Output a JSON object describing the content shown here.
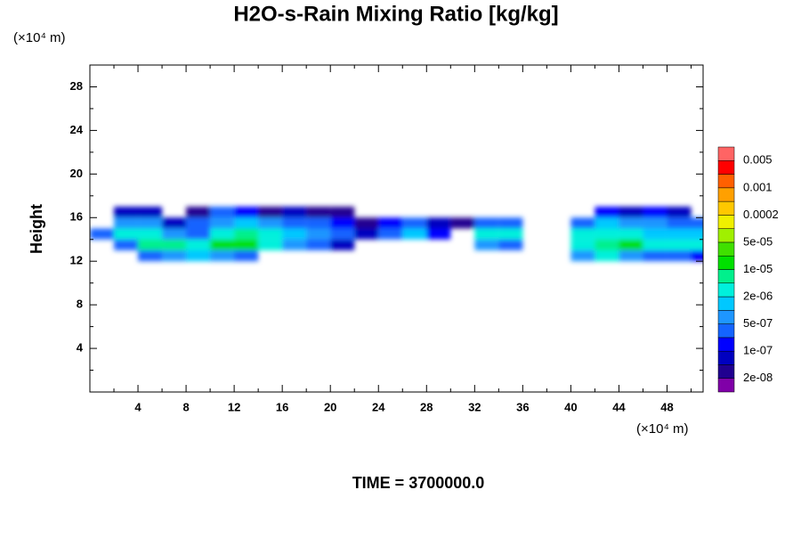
{
  "chart_data": {
    "type": "contour",
    "title": "H2O-s-Rain Mixing Ratio [kg/kg]",
    "x_unit_label": "(×10⁴ m)",
    "y_unit_label": "(×10⁴ m)",
    "ylabel": "Height",
    "time_label": "TIME = 3700000.0",
    "xlim": [
      0,
      51
    ],
    "ylim": [
      0,
      30
    ],
    "xticks": [
      4,
      8,
      12,
      16,
      20,
      24,
      28,
      32,
      36,
      40,
      44,
      48
    ],
    "yticks": [
      4,
      8,
      12,
      16,
      20,
      24,
      28
    ],
    "xminorticks": [
      2,
      6,
      10,
      14,
      18,
      22,
      26,
      30,
      34,
      38,
      42,
      46,
      50
    ],
    "yminorticks": [
      2,
      6,
      10,
      14,
      18,
      22,
      26
    ],
    "x": [
      1,
      3,
      5,
      7,
      9,
      11,
      13,
      15,
      17,
      19,
      21,
      23,
      25,
      27,
      29,
      31,
      33,
      35,
      37,
      39,
      41,
      43,
      45,
      47,
      49,
      51
    ],
    "y": [
      12.5,
      13.5,
      14.5,
      15.5,
      16.5
    ],
    "z": [
      [
        null,
        null,
        2e-07,
        8e-07,
        1e-06,
        6e-07,
        3e-07,
        null,
        null,
        null,
        null,
        null,
        null,
        null,
        null,
        null,
        null,
        null,
        null,
        null,
        8e-07,
        2e-06,
        5e-07,
        3e-07,
        2e-07,
        1e-07
      ],
      [
        null,
        3e-07,
        8e-06,
        6e-06,
        4e-06,
        1.5e-05,
        1.2e-05,
        3e-06,
        8e-07,
        4e-07,
        5e-08,
        null,
        null,
        null,
        null,
        null,
        5e-07,
        3e-07,
        null,
        null,
        3e-06,
        6e-06,
        1e-05,
        2e-06,
        2e-06,
        2e-06
      ],
      [
        3e-07,
        2e-06,
        3e-06,
        5e-07,
        4e-07,
        4e-06,
        5e-06,
        2e-06,
        1e-06,
        6e-07,
        2e-07,
        5e-08,
        2e-07,
        1e-06,
        1e-07,
        null,
        3e-06,
        2e-06,
        null,
        null,
        2e-06,
        3e-06,
        3e-06,
        1e-06,
        1.5e-06,
        1e-06
      ],
      [
        null,
        5e-07,
        6e-07,
        8e-08,
        3e-07,
        8e-07,
        1e-06,
        6e-07,
        4e-07,
        3e-07,
        1e-07,
        4e-08,
        1e-07,
        3e-07,
        5e-08,
        2e-08,
        3e-07,
        2e-07,
        null,
        null,
        4e-07,
        1e-06,
        8e-07,
        5e-07,
        4e-07,
        3e-07
      ],
      [
        null,
        8e-08,
        5e-08,
        null,
        3e-08,
        2e-07,
        1e-07,
        3e-08,
        5e-08,
        3e-08,
        2e-08,
        null,
        null,
        null,
        null,
        null,
        null,
        null,
        null,
        null,
        null,
        1e-07,
        5e-08,
        1e-07,
        5e-08,
        null
      ]
    ],
    "colorbar": {
      "levels": [
        1e-08,
        2e-08,
        5e-08,
        1e-07,
        2e-07,
        5e-07,
        1e-06,
        2e-06,
        5e-06,
        1e-05,
        2e-05,
        5e-05,
        0.0001,
        0.0002,
        0.0005,
        0.001,
        0.002,
        0.005,
        0.01
      ],
      "colors": [
        "#8000a8",
        "#200090",
        "#0000c0",
        "#0000ff",
        "#1464ff",
        "#1e96ff",
        "#00c8ff",
        "#00f0dc",
        "#00f08c",
        "#00e000",
        "#40e000",
        "#a0f000",
        "#f0f000",
        "#ffc800",
        "#ffa000",
        "#ff6000",
        "#ff0000",
        "#ff6464"
      ],
      "ticks": [
        {
          "value": 2e-08,
          "label": "2e-08"
        },
        {
          "value": 1e-07,
          "label": "1e-07"
        },
        {
          "value": 5e-07,
          "label": "5e-07"
        },
        {
          "value": 2e-06,
          "label": "2e-06"
        },
        {
          "value": 1e-05,
          "label": "1e-05"
        },
        {
          "value": 5e-05,
          "label": "5e-05"
        },
        0.0002,
        0.001,
        0.005
      ]
    }
  }
}
